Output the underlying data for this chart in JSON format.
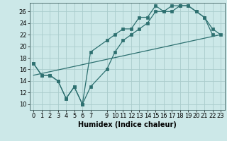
{
  "xlabel": "Humidex (Indice chaleur)",
  "bg_color": "#cce8e8",
  "grid_color": "#aacccc",
  "line_color": "#2d7070",
  "line1_x": [
    0,
    1,
    2,
    3,
    4,
    5,
    6,
    7,
    9,
    10,
    11,
    12,
    13,
    14,
    15,
    16,
    17,
    18,
    19,
    20,
    21,
    22
  ],
  "line1_y": [
    17,
    15,
    15,
    14,
    11,
    13,
    10,
    13,
    16,
    19,
    21,
    22,
    23,
    24,
    26,
    26,
    26,
    27,
    27,
    26,
    25,
    22
  ],
  "line2_x": [
    0,
    1,
    2,
    3,
    4,
    5,
    6,
    7,
    9,
    10,
    11,
    12,
    13,
    14,
    15,
    16,
    17,
    18,
    19,
    20,
    21,
    22,
    23
  ],
  "line2_y": [
    17,
    15,
    15,
    14,
    11,
    13,
    10,
    19,
    21,
    22,
    23,
    23,
    25,
    25,
    27,
    26,
    27,
    27,
    27,
    26,
    25,
    23,
    22
  ],
  "line3_x": [
    0,
    23
  ],
  "line3_y": [
    15,
    22
  ],
  "xlim": [
    -0.5,
    23.5
  ],
  "ylim": [
    9,
    27.5
  ],
  "yticks": [
    10,
    12,
    14,
    16,
    18,
    20,
    22,
    24,
    26
  ],
  "xticks": [
    0,
    1,
    2,
    3,
    4,
    5,
    6,
    7,
    9,
    10,
    11,
    12,
    13,
    14,
    15,
    16,
    17,
    18,
    19,
    20,
    21,
    22,
    23
  ],
  "tick_fontsize": 6,
  "xlabel_fontsize": 7,
  "lw": 0.9,
  "ms": 2.5
}
